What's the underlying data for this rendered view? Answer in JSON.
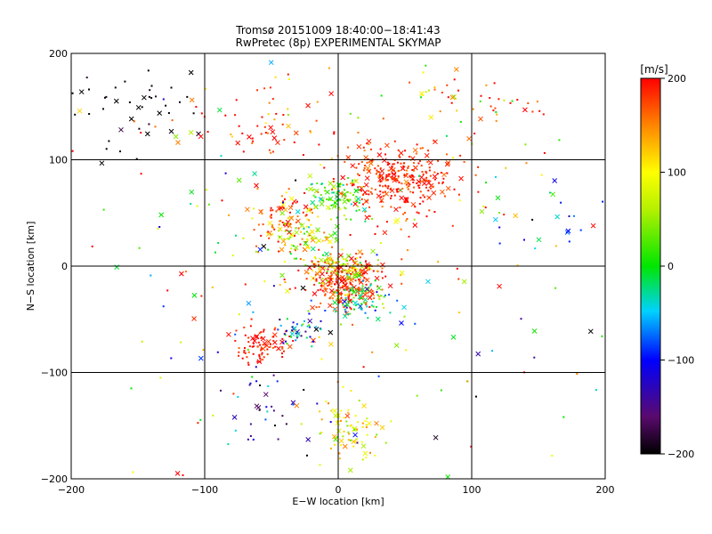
{
  "chart_data": {
    "type": "scatter",
    "title": "Tromsø 20151009 18:40:00−18:41:43",
    "subtitle": "RwPretec (8p) EXPERIMENTAL SKYMAP",
    "xlabel": "E−W location [km]",
    "ylabel": "N−S location [km]",
    "xlim": [
      -200,
      200
    ],
    "ylim": [
      -200,
      200
    ],
    "xticks": [
      -200,
      -100,
      0,
      100,
      200
    ],
    "yticks": [
      -200,
      -100,
      0,
      100,
      200
    ],
    "x_tick_labels": [
      "−200",
      "−100",
      "0",
      "100",
      "200"
    ],
    "y_tick_labels": [
      "−200",
      "−100",
      "0",
      "100",
      "200"
    ],
    "grid": true,
    "marker_types": [
      "dot",
      "cross"
    ],
    "colorbar": {
      "label": "[m/s]",
      "range": [
        -200,
        200
      ],
      "ticks": [
        200,
        100,
        0,
        -100,
        -200
      ],
      "tick_labels": [
        "200",
        "100",
        "0",
        "−100",
        "−200"
      ],
      "colormap": "rainbow"
    },
    "clusters": [
      {
        "x": 45,
        "y": 80,
        "sx": 22,
        "sy": 18,
        "v_mean": 185,
        "v_sd": 20
      },
      {
        "x": 0,
        "y": 65,
        "sx": 10,
        "sy": 10,
        "v_mean": 20,
        "v_sd": 35
      },
      {
        "x": -40,
        "y": 40,
        "sx": 15,
        "sy": 15,
        "v_mean": 160,
        "v_sd": 50
      },
      {
        "x": -25,
        "y": 20,
        "sx": 12,
        "sy": 10,
        "v_mean": 60,
        "v_sd": 40
      },
      {
        "x": 5,
        "y": -15,
        "sx": 15,
        "sy": 12,
        "v_mean": 180,
        "v_sd": 25
      },
      {
        "x": 5,
        "y": 0,
        "sx": 12,
        "sy": 6,
        "v_mean": 80,
        "v_sd": 40
      },
      {
        "x": 15,
        "y": -30,
        "sx": 12,
        "sy": 10,
        "v_mean": -30,
        "v_sd": 50
      },
      {
        "x": -55,
        "y": -75,
        "sx": 12,
        "sy": 10,
        "v_mean": 190,
        "v_sd": 20
      },
      {
        "x": -30,
        "y": -60,
        "sx": 10,
        "sy": 8,
        "v_mean": -100,
        "v_sd": 60
      },
      {
        "x": 10,
        "y": -155,
        "sx": 12,
        "sy": 15,
        "v_mean": 100,
        "v_sd": 40
      },
      {
        "x": -155,
        "y": 150,
        "sx": 30,
        "sy": 25,
        "v_mean": -200,
        "v_sd": 10
      },
      {
        "x": -60,
        "y": 130,
        "sx": 40,
        "sy": 15,
        "v_mean": 180,
        "v_sd": 40
      },
      {
        "x": -55,
        "y": -140,
        "sx": 20,
        "sy": 25,
        "v_mean": -150,
        "v_sd": 60
      },
      {
        "x": 80,
        "y": 160,
        "sx": 15,
        "sy": 15,
        "v_mean": 100,
        "v_sd": 60
      },
      {
        "x": 120,
        "y": 150,
        "sx": 15,
        "sy": 12,
        "v_mean": 190,
        "v_sd": 20
      },
      {
        "x": 150,
        "y": 40,
        "sx": 25,
        "sy": 20,
        "v_mean": -90,
        "v_sd": 50
      },
      {
        "x": 0,
        "y": 0,
        "sx": 110,
        "sy": 110,
        "v_mean": 50,
        "v_sd": 120
      }
    ],
    "cluster_counts": [
      320,
      90,
      110,
      60,
      250,
      80,
      70,
      90,
      40,
      70,
      45,
      60,
      35,
      25,
      20,
      20,
      260
    ]
  }
}
